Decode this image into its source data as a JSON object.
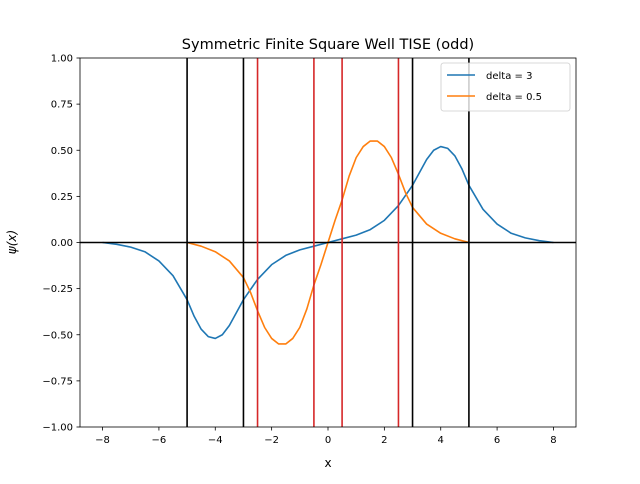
{
  "chart_data": {
    "type": "line",
    "title": "Symmetric Finite Square Well TISE (odd)",
    "xlabel": "x",
    "ylabel": "ψ(x)",
    "xlim": [
      -8.8,
      8.8
    ],
    "ylim": [
      -1.0,
      1.0
    ],
    "xticks": [
      -8,
      -6,
      -4,
      -2,
      0,
      2,
      4,
      6,
      8
    ],
    "xtick_labels": [
      "−8",
      "−6",
      "−4",
      "−2",
      "0",
      "2",
      "4",
      "6",
      "8"
    ],
    "yticks": [
      -1.0,
      -0.75,
      -0.5,
      -0.25,
      0.0,
      0.25,
      0.5,
      0.75,
      1.0
    ],
    "ytick_labels": [
      "−1.00",
      "−0.75",
      "−0.50",
      "−0.25",
      "0.00",
      "0.25",
      "0.50",
      "0.75",
      "1.00"
    ],
    "grid": false,
    "legend_position": "top-right",
    "horizontal_lines": [
      {
        "y": 0,
        "color": "#000000"
      }
    ],
    "vertical_lines": [
      {
        "x": -5,
        "color": "#000000"
      },
      {
        "x": -3,
        "color": "#000000"
      },
      {
        "x": 3,
        "color": "#000000"
      },
      {
        "x": 5,
        "color": "#000000"
      },
      {
        "x": -2.5,
        "color": "#d62728"
      },
      {
        "x": -0.5,
        "color": "#d62728"
      },
      {
        "x": 0.5,
        "color": "#d62728"
      },
      {
        "x": 2.5,
        "color": "#d62728"
      }
    ],
    "series": [
      {
        "name": "delta = 3",
        "color": "#1f77b4",
        "x": [
          -8,
          -7.5,
          -7,
          -6.5,
          -6,
          -5.5,
          -5,
          -4.75,
          -4.5,
          -4.25,
          -4,
          -3.75,
          -3.5,
          -3.25,
          -3,
          -2.5,
          -2,
          -1.5,
          -1,
          -0.5,
          0,
          0.5,
          1,
          1.5,
          2,
          2.5,
          3,
          3.25,
          3.5,
          3.75,
          4,
          4.25,
          4.5,
          4.75,
          5,
          5.5,
          6,
          6.5,
          7,
          7.5,
          8
        ],
        "y": [
          0,
          -0.01,
          -0.025,
          -0.05,
          -0.1,
          -0.18,
          -0.31,
          -0.4,
          -0.47,
          -0.51,
          -0.52,
          -0.5,
          -0.45,
          -0.38,
          -0.31,
          -0.2,
          -0.12,
          -0.07,
          -0.04,
          -0.02,
          0,
          0.02,
          0.04,
          0.07,
          0.12,
          0.2,
          0.31,
          0.38,
          0.45,
          0.5,
          0.52,
          0.51,
          0.47,
          0.4,
          0.31,
          0.18,
          0.1,
          0.05,
          0.025,
          0.01,
          0
        ]
      },
      {
        "name": "delta = 0.5",
        "color": "#ff7f0e",
        "x": [
          -5,
          -4.5,
          -4,
          -3.5,
          -3,
          -2.75,
          -2.5,
          -2.25,
          -2,
          -1.75,
          -1.5,
          -1.25,
          -1,
          -0.75,
          -0.5,
          -0.25,
          0,
          0.25,
          0.5,
          0.75,
          1,
          1.25,
          1.5,
          1.75,
          2,
          2.25,
          2.5,
          2.75,
          3,
          3.5,
          4,
          4.5,
          5
        ],
        "y": [
          0,
          -0.02,
          -0.05,
          -0.1,
          -0.19,
          -0.27,
          -0.37,
          -0.46,
          -0.52,
          -0.55,
          -0.55,
          -0.52,
          -0.46,
          -0.36,
          -0.23,
          -0.12,
          0,
          0.12,
          0.23,
          0.36,
          0.46,
          0.52,
          0.55,
          0.55,
          0.52,
          0.46,
          0.37,
          0.27,
          0.19,
          0.1,
          0.05,
          0.02,
          0
        ]
      }
    ]
  }
}
